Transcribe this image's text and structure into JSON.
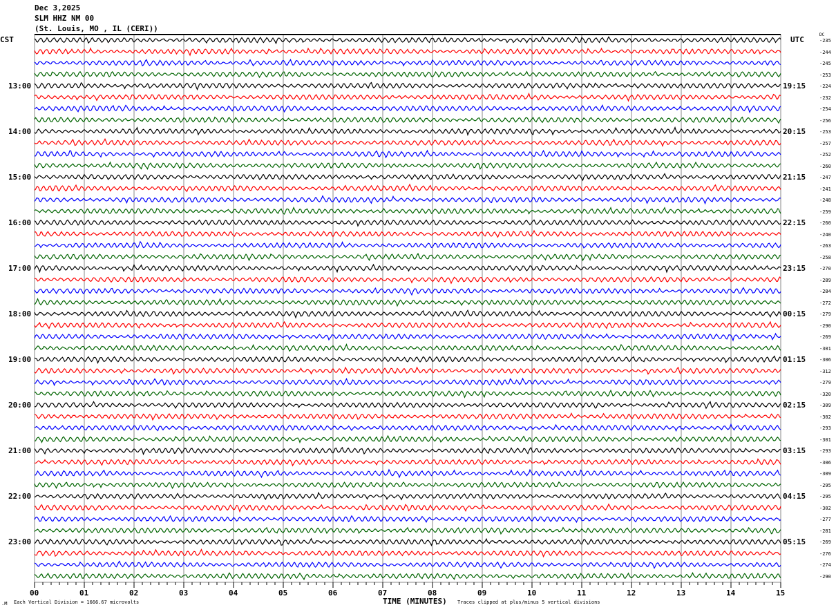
{
  "header": {
    "date": "Dec 3,2025",
    "station": "SLM HHZ NM 00",
    "location": "(St. Louis, MO , IL (CERI))"
  },
  "left_axis": {
    "label": "CST",
    "hours": [
      "13:00",
      "14:00",
      "15:00",
      "16:00",
      "17:00",
      "18:00",
      "19:00",
      "20:00",
      "21:00",
      "22:00",
      "23:00"
    ]
  },
  "right_axis": {
    "label": "UTC",
    "dc_label": "DC",
    "hours": [
      "19:15",
      "20:15",
      "21:15",
      "22:15",
      "23:15",
      "00:15",
      "01:15",
      "02:15",
      "03:15",
      "04:15",
      "05:15"
    ]
  },
  "footer": {
    "scale": "Each Vertical Division = 1666.67 microvolts",
    "xlabel": "TIME (MINUTES)",
    "clip_note": "Traces clipped at plus/minus 5 vertical divisions",
    "corner_mark": ".M"
  },
  "chart_data": {
    "type": "line",
    "title": "SLM HHZ NM 00",
    "xlabel": "TIME (MINUTES)",
    "xlim": [
      0,
      15
    ],
    "x_ticks": [
      "00",
      "01",
      "02",
      "03",
      "04",
      "05",
      "06",
      "07",
      "08",
      "09",
      "10",
      "11",
      "12",
      "13",
      "14",
      "15"
    ],
    "trace_count": 48,
    "trace_colors": [
      "#000000",
      "#ff0000",
      "#0000ff",
      "#006400"
    ],
    "dc_offsets": [
      -235,
      -244,
      -245,
      -253,
      -224,
      -232,
      -254,
      -256,
      -253,
      -257,
      -252,
      -260,
      -247,
      -241,
      -248,
      -259,
      -260,
      -240,
      -263,
      -258,
      -270,
      -289,
      -284,
      -272,
      -279,
      -290,
      -269,
      -301,
      -306,
      -312,
      -279,
      -320,
      -309,
      -302,
      -293,
      -301,
      -293,
      -306,
      -309,
      -295,
      -295,
      -302,
      -277,
      -281,
      -269,
      -276,
      -274,
      -290
    ],
    "grid": true
  }
}
